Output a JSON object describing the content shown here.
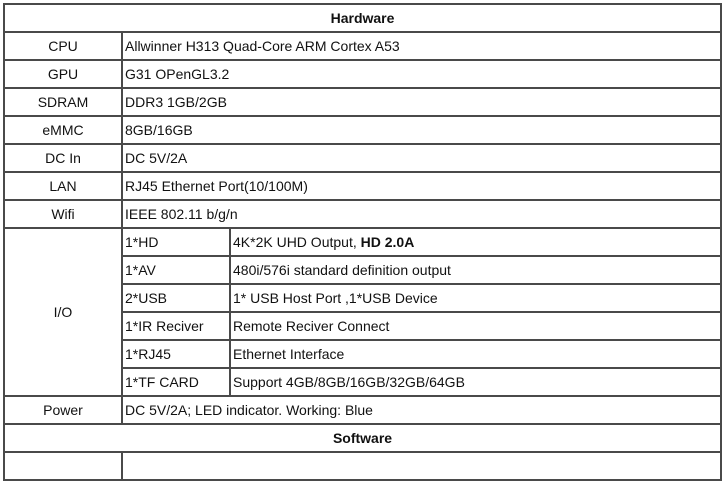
{
  "hardware_title": "Hardware",
  "rows": [
    {
      "label": "CPU",
      "value": "Allwinner H313 Quad-Core ARM Cortex A53"
    },
    {
      "label": "GPU",
      "value": "G31 OPenGL3.2"
    },
    {
      "label": "SDRAM",
      "value": "DDR3  1GB/2GB"
    },
    {
      "label": "eMMC",
      "value": "8GB/16GB"
    },
    {
      "label": "DC In",
      "value": "DC 5V/2A"
    },
    {
      "label": "LAN",
      "value": "RJ45 Ethernet Port(10/100M)"
    },
    {
      "label": "Wifi",
      "value": "IEEE 802.11 b/g/n"
    }
  ],
  "io": {
    "label": "I/O",
    "items": [
      {
        "port": "1*HD",
        "desc": "4K*2K UHD Output, ",
        "desc_bold": "HD 2.0A"
      },
      {
        "port": "1*AV",
        "desc": "480i/576i standard definition output"
      },
      {
        "port": "2*USB",
        "desc": "1* USB Host Port ,1*USB Device"
      },
      {
        "port": "1*IR Reciver",
        "desc": "Remote Reciver Connect"
      },
      {
        "port": "1*RJ45",
        "desc": "Ethernet Interface"
      },
      {
        "port": "1*TF CARD",
        "desc": "Support 4GB/8GB/16GB/32GB/64GB"
      }
    ]
  },
  "power": {
    "label": "Power",
    "value": "DC 5V/2A; LED indicator. Working: Blue"
  },
  "software_title": "Software"
}
